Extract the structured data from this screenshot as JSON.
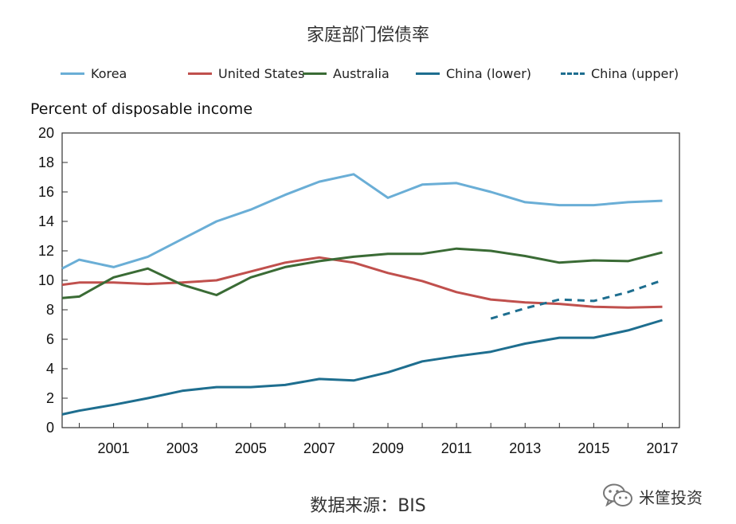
{
  "title": "家庭部门偿债率",
  "source": "数据来源：BIS",
  "brand": "米筐投资",
  "colors": {
    "korea": "#6aaed6",
    "us": "#c0504d",
    "australia": "#3a6b35",
    "china": "#1e6e8f",
    "axis": "#333333"
  },
  "chart_data": {
    "type": "line",
    "ylabel": "Percent of disposable income",
    "xlabel": "",
    "ylim": [
      0,
      20
    ],
    "xlim": [
      1999.5,
      2017.5
    ],
    "x_ticks": [
      "2001",
      "2003",
      "2005",
      "2007",
      "2009",
      "2011",
      "2013",
      "2015",
      "2017"
    ],
    "y_ticks": [
      "0",
      "2",
      "4",
      "6",
      "8",
      "10",
      "12",
      "14",
      "16",
      "18",
      "20"
    ],
    "legend_position": "top",
    "grid": false,
    "series": [
      {
        "name": "Korea",
        "color": "#6aaed6",
        "style": "solid",
        "x": [
          1999.5,
          2000,
          2001,
          2002,
          2003,
          2004,
          2005,
          2006,
          2007,
          2008,
          2009,
          2010,
          2011,
          2012,
          2013,
          2014,
          2015,
          2016,
          2017
        ],
        "y": [
          10.8,
          11.4,
          10.9,
          11.6,
          12.8,
          14.0,
          14.8,
          15.8,
          16.7,
          17.2,
          15.6,
          16.5,
          16.6,
          16.0,
          15.3,
          15.1,
          15.1,
          15.3,
          15.4
        ]
      },
      {
        "name": "United States",
        "color": "#c0504d",
        "style": "solid",
        "x": [
          1999.5,
          2000,
          2001,
          2002,
          2003,
          2004,
          2005,
          2006,
          2007,
          2008,
          2009,
          2010,
          2011,
          2012,
          2013,
          2014,
          2015,
          2016,
          2017
        ],
        "y": [
          9.7,
          9.85,
          9.85,
          9.75,
          9.85,
          10.0,
          10.6,
          11.2,
          11.55,
          11.2,
          10.5,
          9.95,
          9.2,
          8.7,
          8.5,
          8.4,
          8.2,
          8.15,
          8.2
        ]
      },
      {
        "name": "Australia",
        "color": "#3a6b35",
        "style": "solid",
        "x": [
          1999.5,
          2000,
          2001,
          2002,
          2003,
          2004,
          2005,
          2006,
          2007,
          2008,
          2009,
          2010,
          2011,
          2012,
          2013,
          2014,
          2015,
          2016,
          2017
        ],
        "y": [
          8.8,
          8.9,
          10.2,
          10.8,
          9.7,
          9.0,
          10.2,
          10.9,
          11.3,
          11.6,
          11.8,
          11.8,
          12.15,
          12.0,
          11.65,
          11.2,
          11.35,
          11.3,
          11.9
        ]
      },
      {
        "name": "China (lower)",
        "color": "#1e6e8f",
        "style": "solid",
        "x": [
          1999.5,
          2000,
          2001,
          2002,
          2003,
          2004,
          2005,
          2006,
          2007,
          2008,
          2009,
          2010,
          2011,
          2012,
          2013,
          2014,
          2015,
          2016,
          2017
        ],
        "y": [
          0.9,
          1.15,
          1.55,
          2.0,
          2.5,
          2.75,
          2.75,
          2.9,
          3.3,
          3.2,
          3.75,
          4.5,
          4.85,
          5.15,
          5.7,
          6.1,
          6.1,
          6.6,
          7.3
        ]
      },
      {
        "name": "China (upper)",
        "color": "#1e6e8f",
        "style": "dashed",
        "x": [
          2012,
          2013,
          2014,
          2015,
          2016,
          2017
        ],
        "y": [
          7.4,
          8.1,
          8.7,
          8.6,
          9.2,
          10.0
        ]
      }
    ]
  }
}
